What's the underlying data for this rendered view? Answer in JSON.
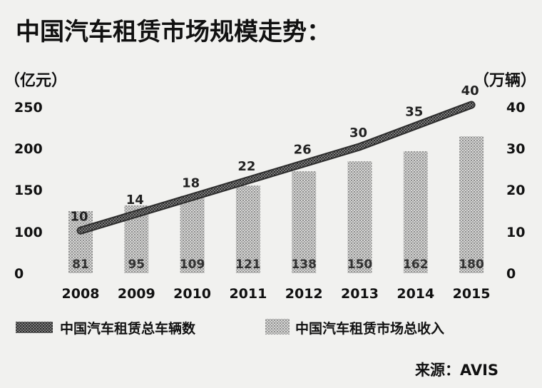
{
  "title": "中国汽车租赁市场规模走势：",
  "source": "来源：AVIS",
  "left_unit": "（亿元）",
  "right_unit": "（万辆）",
  "chart_data": {
    "type": "bar",
    "categories": [
      "2008",
      "2009",
      "2010",
      "2011",
      "2012",
      "2013",
      "2014",
      "2015"
    ],
    "series": [
      {
        "name": "中国汽车租赁市场总收入",
        "type": "bar",
        "axis": "left",
        "values": [
          81,
          95,
          109,
          121,
          138,
          150,
          162,
          180
        ]
      },
      {
        "name": "中国汽车租赁总车辆数",
        "type": "line",
        "axis": "right",
        "values": [
          10,
          14,
          18,
          22,
          26,
          30,
          35,
          40
        ]
      }
    ],
    "left_axis": {
      "ticks": [
        "0",
        "100",
        "150",
        "200",
        "250"
      ]
    },
    "right_axis": {
      "ticks": [
        "0",
        "10",
        "20",
        "30",
        "40"
      ],
      "ylim": [
        0,
        40
      ]
    },
    "legend_position": "bottom",
    "grid": false
  },
  "colors": {
    "line": "#4a4a4a",
    "bar": "#bdbdbd",
    "background": "#f1f1ef"
  }
}
